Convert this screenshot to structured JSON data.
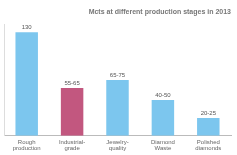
{
  "chart_data": {
    "type": "bar",
    "title": "Mcts at different production stages in 2013",
    "categories": [
      "Rough production",
      "Industrial-grade",
      "Jewelry-quality",
      "Diamond Waste",
      "Polished diamonds"
    ],
    "values": [
      130,
      60,
      70,
      45,
      22.5
    ],
    "value_labels": [
      "130",
      "55-65",
      "65-75",
      "40-50",
      "20-25"
    ],
    "colors": [
      "#7cc6ee",
      "#c2577f",
      "#7cc6ee",
      "#7cc6ee",
      "#7cc6ee"
    ],
    "ylim": [
      0,
      140
    ],
    "yticks": [],
    "grid": false,
    "data_labels": true,
    "tick_labels": "x"
  }
}
